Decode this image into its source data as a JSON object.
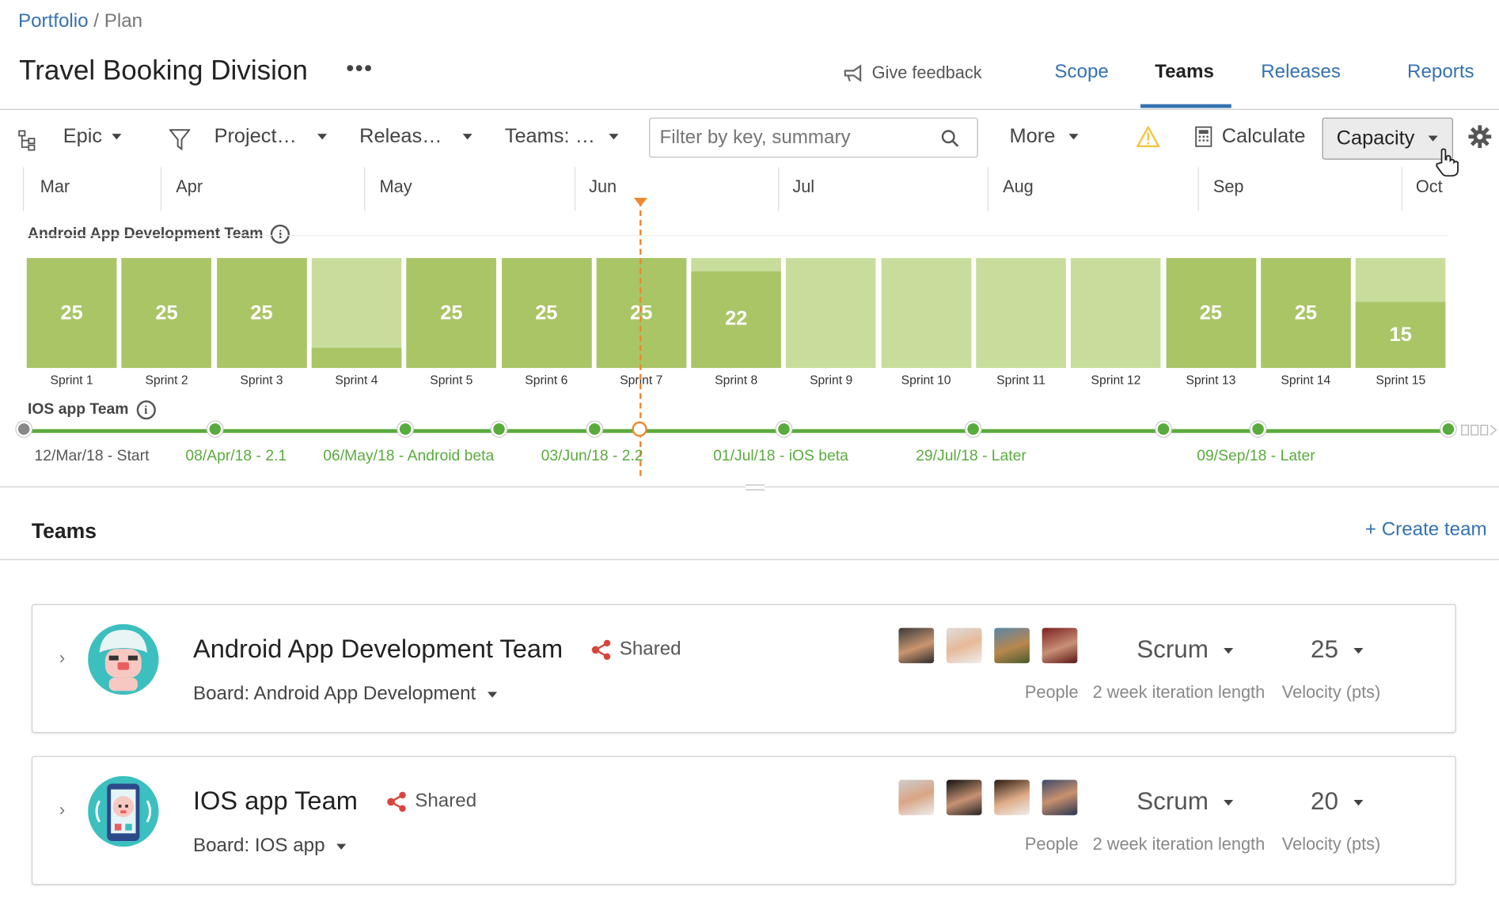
{
  "breadcrumb": {
    "root": "Portfolio",
    "sep": "/",
    "current": "Plan"
  },
  "header": {
    "title": "Travel Booking Division",
    "more": "•••",
    "feedback": "Give feedback"
  },
  "nav": {
    "tabs": [
      {
        "label": "Scope"
      },
      {
        "label": "Teams"
      },
      {
        "label": "Releases"
      },
      {
        "label": "Reports"
      }
    ],
    "active": "Teams"
  },
  "toolbar": {
    "epic": "Epic",
    "project": "Project…",
    "release": "Releas…",
    "teams": "Teams: …",
    "search_placeholder": "Filter by key, summary",
    "more": "More",
    "calculate": "Calculate",
    "capacity": "Capacity"
  },
  "timeline": {
    "months": [
      "Mar",
      "Apr",
      "May",
      "Jun",
      "Jul",
      "Aug",
      "Sep",
      "Oct"
    ],
    "android_team": "Android App Development Team",
    "ios_team": "IOS app Team",
    "sprints": [
      {
        "name": "Sprint 1",
        "value": "25",
        "fill": 1.0
      },
      {
        "name": "Sprint 2",
        "value": "25",
        "fill": 1.0
      },
      {
        "name": "Sprint 3",
        "value": "25",
        "fill": 1.0
      },
      {
        "name": "Sprint 4",
        "value": "",
        "fill": 0.18
      },
      {
        "name": "Sprint 5",
        "value": "25",
        "fill": 1.0
      },
      {
        "name": "Sprint 6",
        "value": "25",
        "fill": 1.0
      },
      {
        "name": "Sprint 7",
        "value": "25",
        "fill": 1.0
      },
      {
        "name": "Sprint 8",
        "value": "22",
        "fill": 0.88
      },
      {
        "name": "Sprint 9",
        "value": "",
        "fill": 0
      },
      {
        "name": "Sprint 10",
        "value": "",
        "fill": 0
      },
      {
        "name": "Sprint 11",
        "value": "",
        "fill": 0
      },
      {
        "name": "Sprint 12",
        "value": "",
        "fill": 0
      },
      {
        "name": "Sprint 13",
        "value": "25",
        "fill": 1.0
      },
      {
        "name": "Sprint 14",
        "value": "25",
        "fill": 1.0
      },
      {
        "name": "Sprint 15",
        "value": "15",
        "fill": 0.6
      }
    ],
    "releases": [
      {
        "label": "12/Mar/18 - Start"
      },
      {
        "label": "08/Apr/18 - 2.1"
      },
      {
        "label": "06/May/18 - Android beta"
      },
      {
        "label": "03/Jun/18 - 2.2"
      },
      {
        "label": "01/Jul/18 - iOS beta"
      },
      {
        "label": "29/Jul/18 - Later"
      },
      {
        "label": "09/Sep/18 - Later"
      }
    ]
  },
  "teams_section": {
    "heading": "Teams",
    "create": "+ Create team"
  },
  "teams": [
    {
      "name": "Android App Development Team",
      "shared": "Shared",
      "board": "Board: Android App Development",
      "method": "Scrum",
      "velocity": "25",
      "people_label": "People",
      "iteration_label": "2 week iteration length",
      "velocity_label": "Velocity (pts)"
    },
    {
      "name": "IOS app Team",
      "shared": "Shared",
      "board": "Board: IOS app",
      "method": "Scrum",
      "velocity": "20",
      "people_label": "People",
      "iteration_label": "2 week iteration length",
      "velocity_label": "Velocity (pts)"
    }
  ],
  "colors": {
    "link": "#3572b0",
    "capacity_full": "#a9c566",
    "capacity_empty": "#c8dd9b",
    "release": "#5aab3e",
    "today": "#f0862f",
    "warning": "#f6c342"
  }
}
